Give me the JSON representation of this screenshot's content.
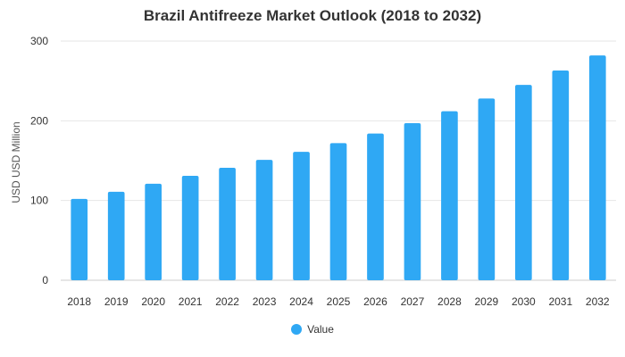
{
  "chart_data": {
    "type": "bar",
    "title": "Brazil Antifreeze Market Outlook (2018 to 2032)",
    "xlabel": "",
    "ylabel": "USD USD Million",
    "categories": [
      "2018",
      "2019",
      "2020",
      "2021",
      "2022",
      "2023",
      "2024",
      "2025",
      "2026",
      "2027",
      "2028",
      "2029",
      "2030",
      "2031",
      "2032"
    ],
    "series": [
      {
        "name": "Value",
        "values": [
          102,
          111,
          121,
          131,
          141,
          151,
          161,
          172,
          184,
          197,
          212,
          228,
          245,
          263,
          282
        ],
        "color": "#2fa8f4"
      }
    ],
    "ylim": [
      0,
      300
    ],
    "yticks": [
      0,
      100,
      200,
      300
    ],
    "grid": true,
    "legend_position": "bottom"
  },
  "colors": {
    "bar": "#2fa8f4",
    "grid": "#e6e6e6",
    "axis": "#cccccc"
  }
}
